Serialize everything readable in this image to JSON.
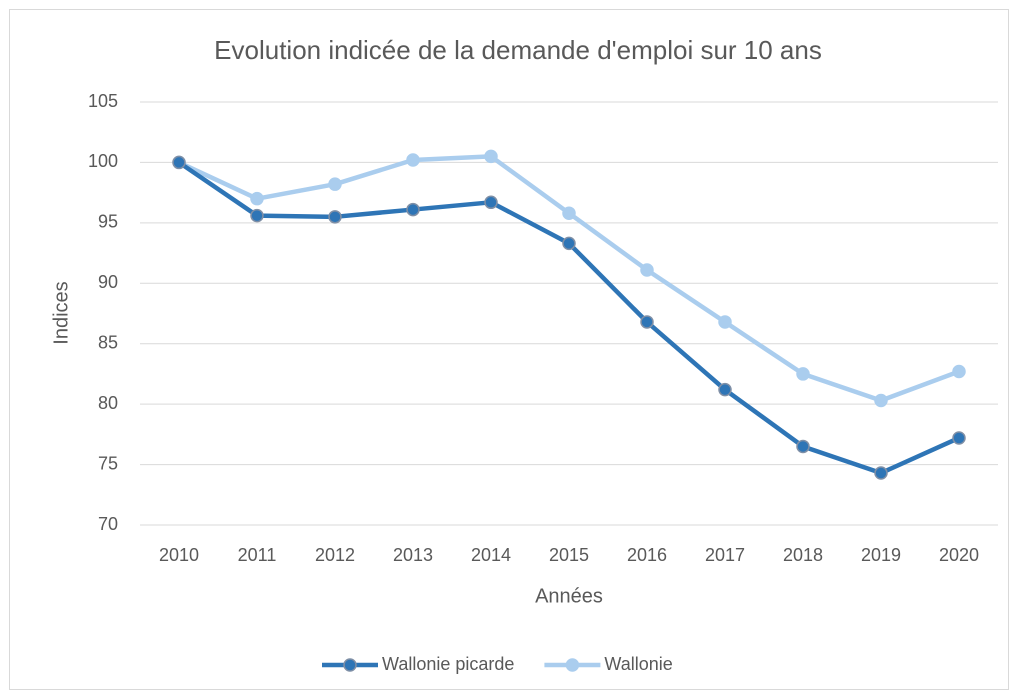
{
  "chart_data": {
    "type": "line",
    "title": "Evolution indicée de la demande d'emploi sur 10 ans",
    "x_label": "Années",
    "y_label": "Indices",
    "categories": [
      "2010",
      "2011",
      "2012",
      "2013",
      "2014",
      "2015",
      "2016",
      "2017",
      "2018",
      "2019",
      "2020"
    ],
    "series": [
      {
        "name": "Wallonie picarde",
        "color": "#2e75b6",
        "values": [
          100,
          95.6,
          95.5,
          96.1,
          96.7,
          93.3,
          86.8,
          81.2,
          76.5,
          74.3,
          77.2
        ]
      },
      {
        "name": "Wallonie",
        "color": "#aacdee",
        "values": [
          100,
          97.0,
          98.2,
          100.2,
          100.5,
          95.8,
          91.1,
          86.8,
          82.5,
          80.3,
          82.7
        ]
      }
    ],
    "ylim": [
      70,
      105
    ],
    "yticks": [
      70,
      75,
      80,
      85,
      90,
      95,
      100,
      105
    ],
    "grid": true,
    "legend": "bottom"
  }
}
